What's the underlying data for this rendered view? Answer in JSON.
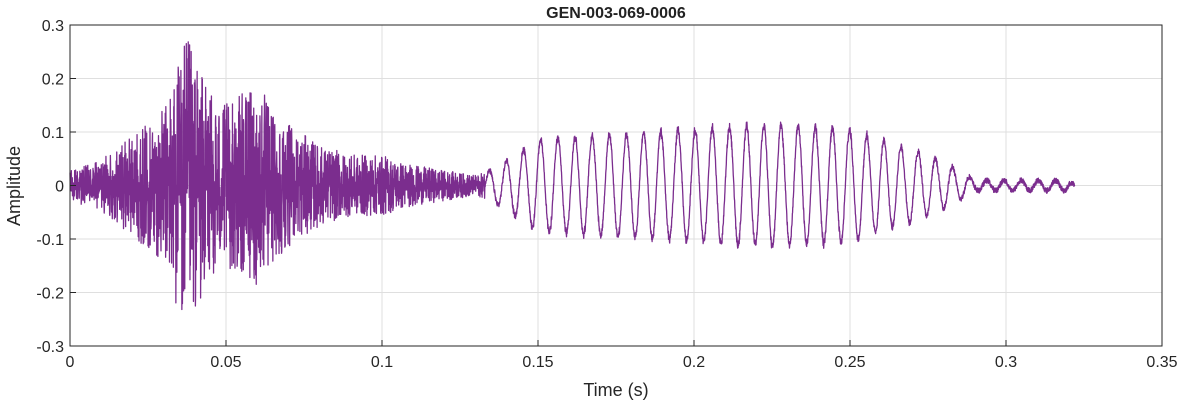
{
  "chart_data": {
    "type": "line",
    "title": "GEN-003-069-0006",
    "xlabel": "Time (s)",
    "ylabel": "Amplitude",
    "xlim": [
      0,
      0.35
    ],
    "ylim": [
      -0.3,
      0.3
    ],
    "grid": true,
    "line_color": "#7B2D8E",
    "x_ticks": [
      0,
      0.05,
      0.1,
      0.15,
      0.2,
      0.25,
      0.3,
      0.35
    ],
    "x_tick_labels": [
      "0",
      "0.05",
      "0.1",
      "0.15",
      "0.2",
      "0.25",
      "0.3",
      "0.35"
    ],
    "y_ticks": [
      -0.3,
      -0.2,
      -0.1,
      0,
      0.1,
      0.2,
      0.3
    ],
    "y_tick_labels": [
      "-0.3",
      "-0.2",
      "-0.1",
      "0",
      "0.1",
      "0.2",
      "0.3"
    ],
    "series": [
      {
        "x": [
          0,
          0.01,
          0.02,
          0.03,
          0.037,
          0.045,
          0.05,
          0.06,
          0.07,
          0.08,
          0.09,
          0.1,
          0.11,
          0.12,
          0.13,
          0.135,
          0.15,
          0.175,
          0.2,
          0.225,
          0.25,
          0.275,
          0.285,
          0.29,
          0.3,
          0.31,
          0.32,
          0.322
        ],
        "values": [
          0.03,
          0.05,
          0.1,
          0.15,
          0.3,
          0.18,
          0.16,
          0.2,
          0.12,
          0.08,
          0.06,
          0.06,
          0.04,
          0.03,
          0.02,
          0.03,
          0.09,
          0.1,
          0.11,
          0.12,
          0.11,
          0.06,
          0.03,
          0.01,
          0.01,
          0.01,
          0.01,
          0.0
        ]
      }
    ]
  }
}
